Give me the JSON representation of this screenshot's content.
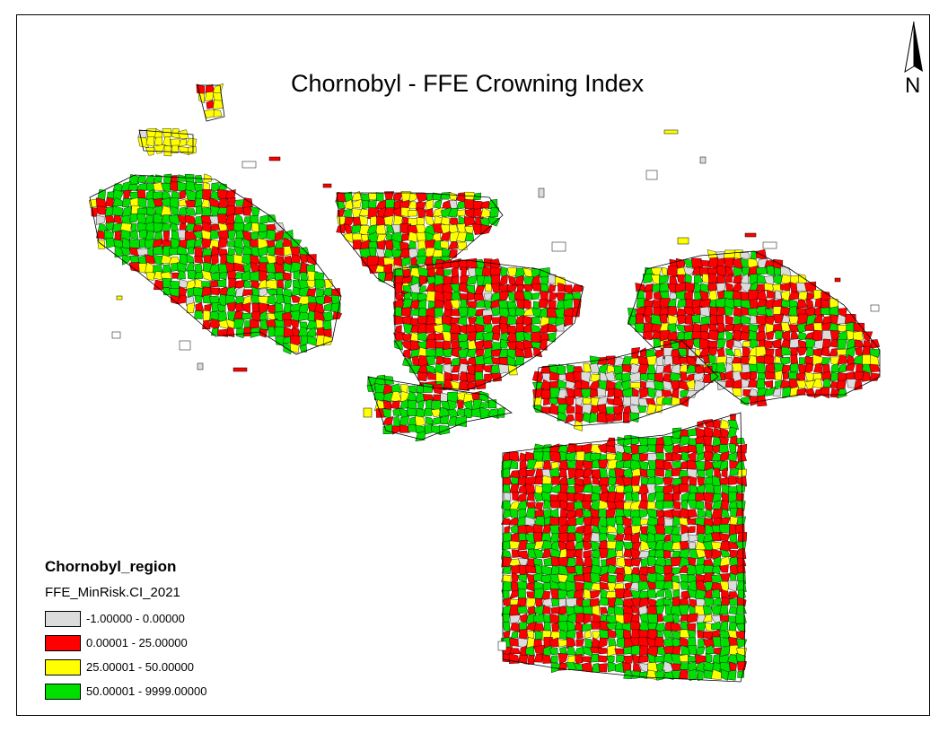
{
  "title": "Chornobyl - FFE Crowning Index",
  "north_arrow": {
    "label": "N",
    "icon": "north-arrow-icon"
  },
  "legend": {
    "layer": "Chornobyl_region",
    "field": "FFE_MinRisk.CI_2021",
    "classes": [
      {
        "label": "-1.00000 - 0.00000",
        "color": "#dcdcdc"
      },
      {
        "label": "0.00001 - 25.00000",
        "color": "#ff0000"
      },
      {
        "label": "25.00001 - 50.00000",
        "color": "#ffff00"
      },
      {
        "label": "50.00001 - 9999.00000",
        "color": "#00e000"
      }
    ]
  }
}
